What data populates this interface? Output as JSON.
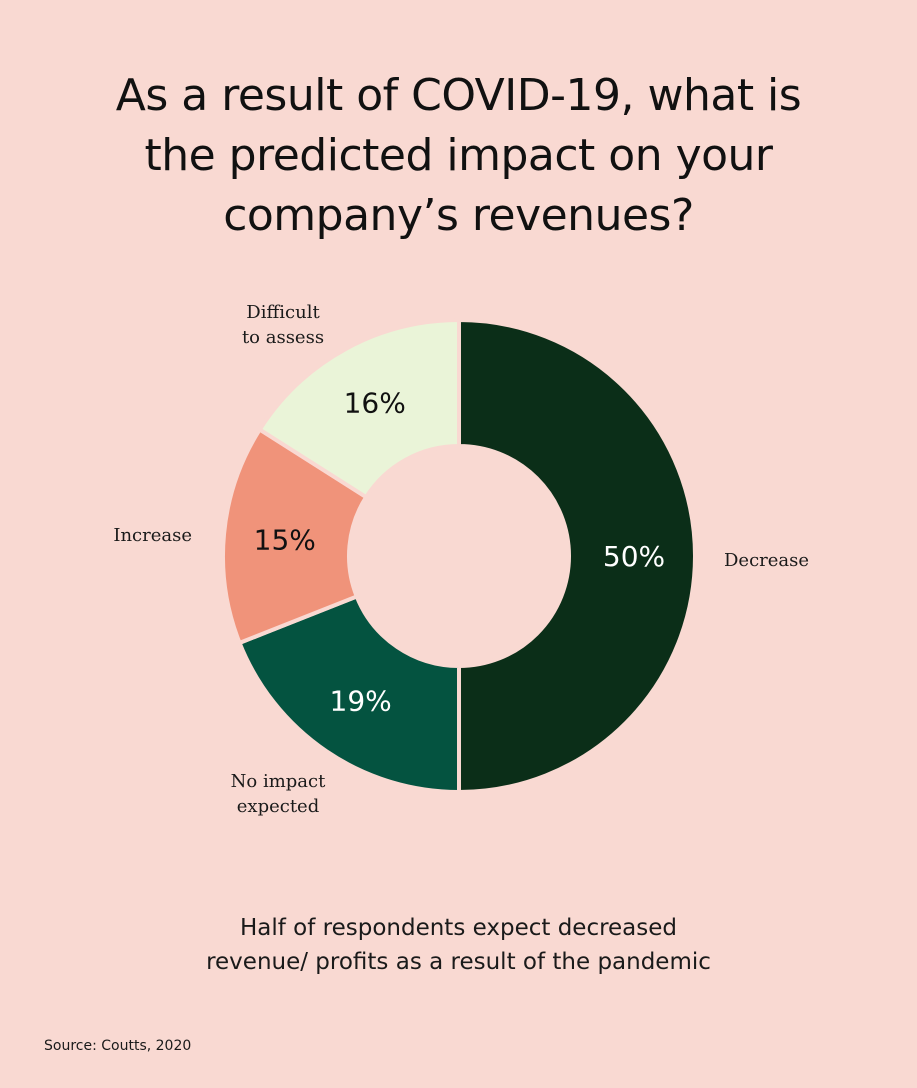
{
  "title_lines": [
    "As a result of COVID-19, what is",
    "the predicted impact on your",
    "company’s revenues?"
  ],
  "chart_data": {
    "type": "pie",
    "slices": [
      {
        "label_lines": [
          "Decrease"
        ],
        "value": 50,
        "value_label": "50%",
        "color": "#0b2e18",
        "text_color": "#ffffff"
      },
      {
        "label_lines": [
          "No impact",
          "expected"
        ],
        "value": 19,
        "value_label": "19%",
        "color": "#045340",
        "text_color": "#ffffff"
      },
      {
        "label_lines": [
          "Increase"
        ],
        "value": 15,
        "value_label": "15%",
        "color": "#f0937a",
        "text_color": "#111111"
      },
      {
        "label_lines": [
          "Difficult",
          "to assess"
        ],
        "value": 16,
        "value_label": "16%",
        "color": "#eaf4d8",
        "text_color": "#111111"
      }
    ],
    "donut": true
  },
  "caption_lines": [
    "Half of respondents expect decreased",
    "revenue/ profits as a result of the pandemic"
  ],
  "source": "Source: Coutts, 2020"
}
